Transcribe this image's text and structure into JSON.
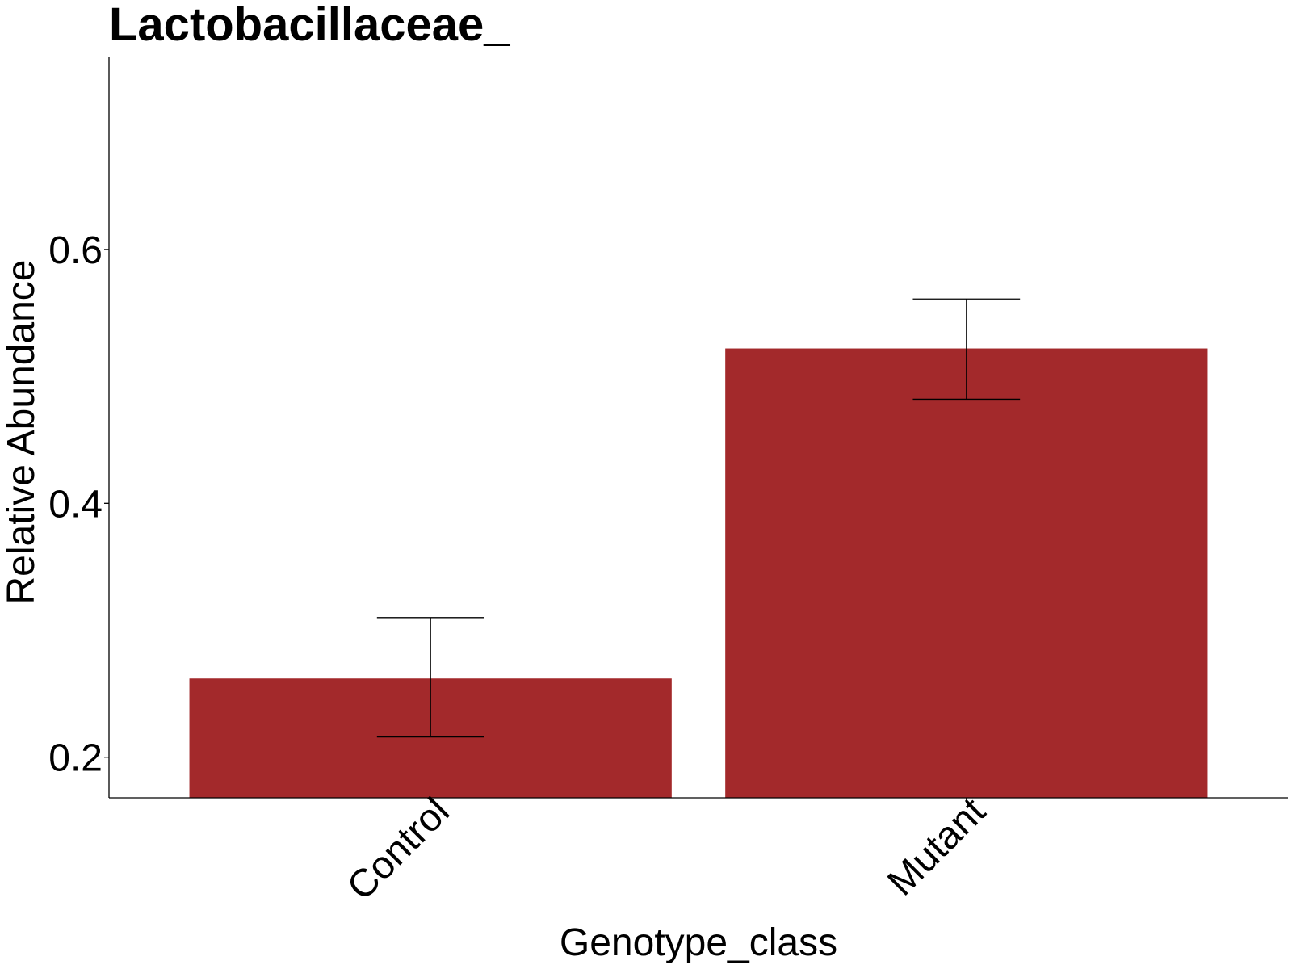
{
  "chart_data": {
    "type": "bar",
    "title": "Lactobacillaceae_",
    "xlabel": "Genotype_class",
    "ylabel": "Relative Abundance",
    "categories": [
      "Control",
      "Mutant"
    ],
    "values": [
      0.262,
      0.522
    ],
    "error_upper": [
      0.31,
      0.561
    ],
    "error_lower": [
      0.216,
      0.482
    ],
    "ylim": [
      0.168,
      0.752
    ],
    "yticks": [
      0.2,
      0.4,
      0.6
    ],
    "ytick_labels": [
      "0.2",
      "0.4",
      "0.6"
    ],
    "grid": false,
    "legend": "none",
    "bar_color": "#A3292B",
    "error_bar_color": "#000000"
  }
}
